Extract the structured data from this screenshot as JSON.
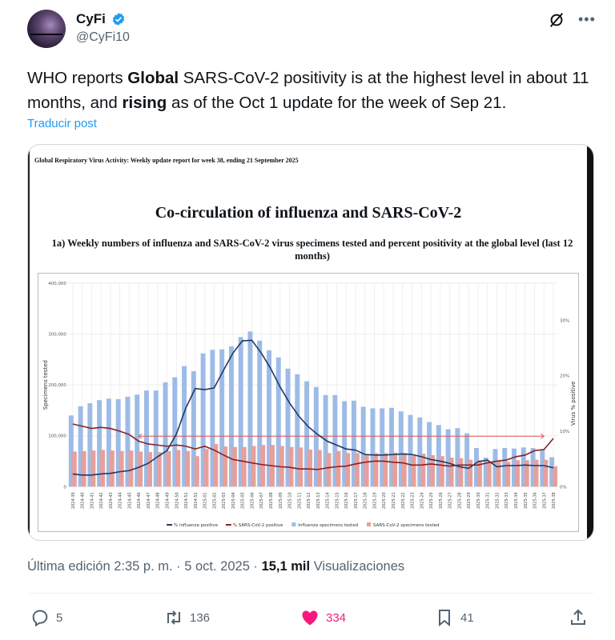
{
  "author": {
    "name": "CyFi",
    "handle": "@CyFi10"
  },
  "tweet": {
    "parts": [
      "WHO reports ",
      "Global",
      " SARS-CoV-2 positivity is at the highest level in about 11 months, and ",
      "rising",
      " as of the Oct 1 update for the week of Sep 21."
    ],
    "translate": "Traducir post"
  },
  "image": {
    "report_header": "Global Respiratory Virus Activity: Weekly update report for week 38, ending 21 September 2025",
    "title": "Co-circulation of influenza and SARS-CoV-2",
    "subtitle": "1a) Weekly numbers of influenza and SARS-CoV-2 virus specimens tested and percent positivity at the global level (last 12 months)"
  },
  "chart_data": {
    "type": "bar",
    "xlabel": "",
    "ylabel": "Specimens tested",
    "y2label": "Virus % positive",
    "ylim": [
      0,
      400000
    ],
    "y2lim": [
      0,
      36.7
    ],
    "yticks": [
      "0",
      "100,000",
      "200,000",
      "300,000",
      "400,000"
    ],
    "y2ticks": [
      "0%",
      "10%",
      "20%",
      "30%"
    ],
    "categories": [
      "2024-39",
      "2024-40",
      "2024-41",
      "2024-42",
      "2024-43",
      "2024-44",
      "2024-45",
      "2024-46",
      "2024-47",
      "2024-48",
      "2024-49",
      "2024-50",
      "2024-51",
      "2024-52",
      "2025-01",
      "2025-02",
      "2025-03",
      "2025-04",
      "2025-05",
      "2025-06",
      "2025-07",
      "2025-08",
      "2025-09",
      "2025-10",
      "2025-11",
      "2025-12",
      "2025-13",
      "2025-14",
      "2025-15",
      "2025-16",
      "2025-17",
      "2025-18",
      "2025-19",
      "2025-20",
      "2025-21",
      "2025-22",
      "2025-23",
      "2025-24",
      "2025-25",
      "2025-26",
      "2025-27",
      "2025-28",
      "2025-29",
      "2025-30",
      "2025-31",
      "2025-32",
      "2025-33",
      "2025-34",
      "2025-35",
      "2025-36",
      "2025-37",
      "2025-38"
    ],
    "series": [
      {
        "name": "Influenza specimens tested",
        "kind": "bar",
        "axis": "left",
        "color": "#9dbbe6",
        "values": [
          140000,
          158000,
          164000,
          170000,
          173000,
          172000,
          177000,
          181000,
          189000,
          189000,
          205000,
          215000,
          237000,
          227000,
          262000,
          269000,
          270000,
          276000,
          294000,
          305000,
          287000,
          268000,
          254000,
          232000,
          221000,
          207000,
          196000,
          180000,
          180000,
          168000,
          169000,
          157000,
          154000,
          154000,
          155000,
          148000,
          141000,
          136000,
          127000,
          121000,
          113000,
          115000,
          105000,
          76000,
          57000,
          74000,
          76000,
          75000,
          77000,
          76000,
          72000,
          58000
        ]
      },
      {
        "name": "SARS-CoV-2 specimens tested",
        "kind": "bar",
        "axis": "left",
        "color": "#e6a09b",
        "values": [
          69000,
          70000,
          71000,
          72000,
          71000,
          70000,
          71000,
          69000,
          68000,
          68000,
          70000,
          72000,
          70000,
          60000,
          74000,
          84000,
          79000,
          78000,
          78000,
          80000,
          82000,
          82000,
          80000,
          78000,
          77000,
          73000,
          72000,
          66000,
          70000,
          66000,
          66000,
          62000,
          66000,
          66000,
          67000,
          66000,
          61000,
          65000,
          62000,
          60000,
          57000,
          56000,
          53000,
          52000,
          47000,
          50000,
          49000,
          52000,
          52000,
          53000,
          53000,
          40000
        ]
      },
      {
        "name": "% influenza positive",
        "kind": "line",
        "axis": "right",
        "color": "#1f3864",
        "values": [
          2.3,
          2.1,
          2.1,
          2.3,
          2.4,
          2.7,
          2.9,
          3.5,
          4.2,
          5.4,
          6.5,
          9.5,
          14.2,
          17.7,
          17.5,
          17.8,
          21.0,
          24.1,
          26.3,
          26.4,
          24.1,
          21.3,
          18.0,
          15.1,
          12.7,
          10.8,
          9.4,
          8.2,
          7.5,
          6.8,
          6.6,
          5.8,
          5.7,
          5.7,
          5.8,
          5.9,
          5.8,
          5.4,
          4.9,
          4.6,
          4.2,
          3.6,
          3.3,
          4.5,
          4.8,
          3.6,
          3.8,
          3.8,
          3.9,
          3.8,
          3.8,
          3.4
        ]
      },
      {
        "name": "% SARS-CoV-2 positive",
        "kind": "line",
        "axis": "right",
        "color": "#8b2020",
        "values": [
          11.3,
          10.9,
          10.5,
          10.7,
          10.5,
          10.0,
          9.4,
          8.2,
          7.7,
          7.5,
          7.3,
          7.5,
          7.3,
          6.8,
          7.3,
          6.6,
          5.7,
          4.9,
          4.6,
          4.3,
          4.0,
          3.8,
          3.6,
          3.5,
          3.2,
          3.2,
          3.1,
          3.4,
          3.6,
          3.7,
          4.1,
          4.4,
          4.6,
          4.6,
          4.4,
          4.3,
          3.9,
          3.9,
          4.1,
          3.9,
          3.7,
          3.9,
          3.9,
          3.9,
          4.3,
          4.6,
          4.8,
          5.4,
          5.7,
          6.5,
          6.7,
          8.7
        ]
      }
    ],
    "annotation": {
      "type": "double-arrow",
      "level_pct": 9.1,
      "from": "2024-46",
      "to": "2025-37",
      "color": "#e05555"
    },
    "legend": [
      "% influenza positive",
      "% SARS-CoV-2 positive",
      "Influenza specimens tested",
      "SARS-CoV-2 specimens tested"
    ],
    "legend_position": "bottom",
    "grid": true
  },
  "meta": {
    "edited": "Última edición 2:35 p. m. · 5 oct. 2025 · ",
    "views": "15,1 mil",
    "views_label": " Visualizaciones"
  },
  "actions": {
    "replies": "5",
    "reposts": "136",
    "likes": "334",
    "bookmarks": "41"
  },
  "colors": {
    "accent": "#1d9bf0",
    "like": "#f91880",
    "muted": "#536471"
  }
}
